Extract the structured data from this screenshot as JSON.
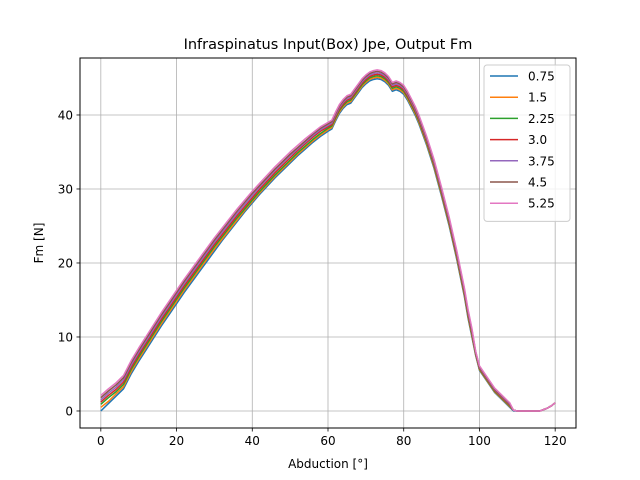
{
  "chart_data": {
    "type": "line",
    "title": "Infraspinatus Input(Box) Jpe, Output Fm",
    "xlabel": "Abduction [°]",
    "ylabel": "Fm [N]",
    "xlim": [
      -5.5,
      125.5
    ],
    "ylim": [
      -2.3,
      47.7
    ],
    "xticks": [
      0,
      20,
      40,
      60,
      80,
      100,
      120
    ],
    "yticks": [
      0,
      10,
      20,
      30,
      40
    ],
    "grid": true,
    "legend_position": "top-right",
    "x": [
      0,
      2,
      4,
      6,
      8,
      10,
      12,
      14,
      16,
      18,
      20,
      22,
      24,
      25,
      26,
      27,
      28,
      30,
      32,
      34,
      36,
      38,
      40,
      42,
      44,
      46,
      48,
      50,
      52,
      54,
      56,
      58,
      60,
      61,
      62,
      63,
      64,
      65,
      66,
      67,
      68,
      69,
      70,
      71,
      72,
      73,
      74,
      75,
      76,
      77,
      78,
      79,
      80,
      81,
      82,
      83,
      84,
      85,
      86,
      87,
      88,
      90,
      92,
      94,
      96,
      97,
      98,
      99,
      100,
      102,
      104,
      106,
      108,
      109,
      110,
      112,
      114,
      116,
      117,
      118,
      119,
      120
    ],
    "series": [
      {
        "name": "0.75",
        "color": "#1f77b4",
        "values": [
          0.0,
          1.0,
          2.0,
          3.0,
          5.0,
          6.7,
          8.3,
          9.9,
          11.5,
          13.0,
          14.5,
          16.0,
          17.4,
          18.1,
          18.8,
          19.5,
          20.2,
          21.6,
          23.0,
          24.3,
          25.6,
          26.9,
          28.1,
          29.3,
          30.4,
          31.5,
          32.5,
          33.5,
          34.5,
          35.4,
          36.3,
          37.1,
          37.8,
          38.1,
          39.2,
          40.2,
          40.9,
          41.4,
          41.6,
          42.3,
          43.0,
          43.7,
          44.2,
          44.6,
          44.8,
          44.9,
          44.8,
          44.5,
          44.0,
          43.2,
          43.4,
          43.2,
          42.8,
          42.0,
          41.0,
          40.0,
          38.8,
          37.4,
          36.0,
          34.4,
          32.8,
          29.0,
          25.0,
          20.5,
          15.5,
          12.5,
          10.0,
          7.5,
          5.5,
          4.0,
          2.5,
          1.5,
          0.5,
          0.0,
          0.0,
          0.0,
          0.0,
          0.0,
          0.2,
          0.4,
          0.7,
          1.1
        ]
      },
      {
        "name": "1.5",
        "color": "#ff7f0e",
        "values": [
          0.5,
          1.3,
          2.3,
          3.3,
          5.3,
          7.0,
          8.6,
          10.2,
          11.8,
          13.3,
          14.8,
          16.3,
          17.7,
          18.4,
          19.1,
          19.8,
          20.5,
          21.9,
          23.2,
          24.5,
          25.8,
          27.1,
          28.3,
          29.5,
          30.6,
          31.7,
          32.7,
          33.7,
          34.7,
          35.6,
          36.5,
          37.3,
          38.0,
          38.3,
          39.4,
          40.4,
          41.1,
          41.6,
          41.8,
          42.5,
          43.2,
          43.9,
          44.4,
          44.8,
          45.0,
          45.1,
          45.0,
          44.7,
          44.2,
          43.4,
          43.6,
          43.4,
          43.0,
          42.2,
          41.2,
          40.2,
          39.0,
          37.6,
          36.2,
          34.6,
          33.0,
          29.2,
          25.2,
          20.7,
          15.7,
          12.7,
          10.2,
          7.6,
          5.6,
          4.1,
          2.6,
          1.6,
          0.6,
          0.1,
          0.0,
          0.0,
          0.0,
          0.0,
          0.2,
          0.4,
          0.7,
          1.1
        ]
      },
      {
        "name": "2.25",
        "color": "#2ca02c",
        "values": [
          0.9,
          1.8,
          2.6,
          3.6,
          5.6,
          7.3,
          8.9,
          10.5,
          12.1,
          13.6,
          15.1,
          16.6,
          18.0,
          18.7,
          19.4,
          20.1,
          20.8,
          22.2,
          23.5,
          24.8,
          26.1,
          27.3,
          28.5,
          29.7,
          30.8,
          31.9,
          32.9,
          33.9,
          34.9,
          35.8,
          36.7,
          37.5,
          38.2,
          38.5,
          39.6,
          40.6,
          41.3,
          41.8,
          42.0,
          42.7,
          43.4,
          44.1,
          44.6,
          45.0,
          45.2,
          45.3,
          45.2,
          44.9,
          44.4,
          43.6,
          43.8,
          43.6,
          43.2,
          42.4,
          41.4,
          40.4,
          39.2,
          37.8,
          36.4,
          34.8,
          33.2,
          29.4,
          25.4,
          20.9,
          15.9,
          12.9,
          10.4,
          7.7,
          5.7,
          4.2,
          2.7,
          1.7,
          0.7,
          0.1,
          0.0,
          0.0,
          0.0,
          0.0,
          0.2,
          0.4,
          0.7,
          1.1
        ]
      },
      {
        "name": "3.0",
        "color": "#d62728",
        "values": [
          1.2,
          2.1,
          2.9,
          3.9,
          5.9,
          7.6,
          9.2,
          10.8,
          12.4,
          13.9,
          15.4,
          16.9,
          18.3,
          19.0,
          19.7,
          20.4,
          21.1,
          22.5,
          23.8,
          25.1,
          26.4,
          27.6,
          28.8,
          30.0,
          31.1,
          32.2,
          33.2,
          34.2,
          35.2,
          36.1,
          37.0,
          37.8,
          38.4,
          38.7,
          39.8,
          40.8,
          41.5,
          42.0,
          42.2,
          42.9,
          43.6,
          44.3,
          44.8,
          45.2,
          45.4,
          45.5,
          45.4,
          45.1,
          44.6,
          43.8,
          44.0,
          43.8,
          43.4,
          42.6,
          41.6,
          40.6,
          39.4,
          38.0,
          36.6,
          35.0,
          33.4,
          29.6,
          25.6,
          21.1,
          16.1,
          13.1,
          10.6,
          7.8,
          5.8,
          4.3,
          2.8,
          1.8,
          0.8,
          0.1,
          0.0,
          0.0,
          0.0,
          0.0,
          0.2,
          0.4,
          0.7,
          1.1
        ]
      },
      {
        "name": "3.75",
        "color": "#9467bd",
        "values": [
          1.5,
          2.4,
          3.2,
          4.2,
          6.2,
          7.9,
          9.5,
          11.1,
          12.7,
          14.2,
          15.7,
          17.2,
          18.6,
          19.3,
          20.0,
          20.7,
          21.4,
          22.8,
          24.1,
          25.4,
          26.7,
          27.9,
          29.1,
          30.3,
          31.4,
          32.5,
          33.5,
          34.5,
          35.4,
          36.3,
          37.2,
          38.0,
          38.6,
          38.9,
          40.0,
          41.0,
          41.7,
          42.2,
          42.4,
          43.1,
          43.8,
          44.5,
          45.0,
          45.4,
          45.6,
          45.7,
          45.6,
          45.3,
          44.8,
          44.0,
          44.2,
          44.0,
          43.6,
          42.8,
          41.8,
          40.8,
          39.6,
          38.2,
          36.8,
          35.2,
          33.6,
          29.8,
          25.8,
          21.3,
          16.3,
          13.3,
          10.8,
          7.9,
          5.9,
          4.4,
          2.9,
          1.9,
          0.9,
          0.1,
          0.0,
          0.0,
          0.0,
          0.0,
          0.2,
          0.4,
          0.7,
          1.1
        ]
      },
      {
        "name": "4.5",
        "color": "#8c564b",
        "values": [
          1.8,
          2.7,
          3.5,
          4.5,
          6.5,
          8.2,
          9.8,
          11.4,
          13.0,
          14.5,
          16.0,
          17.5,
          18.9,
          19.6,
          20.3,
          21.0,
          21.7,
          23.1,
          24.4,
          25.7,
          27.0,
          28.2,
          29.4,
          30.5,
          31.6,
          32.7,
          33.7,
          34.7,
          35.6,
          36.5,
          37.4,
          38.2,
          38.8,
          39.1,
          40.2,
          41.2,
          41.9,
          42.4,
          42.6,
          43.3,
          44.0,
          44.7,
          45.2,
          45.6,
          45.8,
          45.9,
          45.8,
          45.5,
          45.0,
          44.2,
          44.4,
          44.2,
          43.8,
          43.0,
          42.0,
          41.0,
          39.8,
          38.4,
          37.0,
          35.4,
          33.8,
          30.0,
          26.0,
          21.5,
          16.5,
          13.5,
          11.0,
          8.0,
          6.0,
          4.5,
          3.0,
          2.0,
          1.0,
          0.1,
          0.0,
          0.0,
          0.0,
          0.0,
          0.2,
          0.4,
          0.7,
          1.1
        ]
      },
      {
        "name": "5.25",
        "color": "#e377c2",
        "values": [
          2.1,
          3.0,
          3.8,
          4.8,
          6.8,
          8.5,
          10.1,
          11.7,
          13.3,
          14.8,
          16.3,
          17.8,
          19.2,
          19.9,
          20.6,
          21.3,
          22.0,
          23.4,
          24.7,
          26.0,
          27.3,
          28.5,
          29.7,
          30.8,
          31.9,
          33.0,
          34.0,
          35.0,
          35.9,
          36.8,
          37.6,
          38.4,
          39.0,
          39.3,
          40.4,
          41.4,
          42.1,
          42.6,
          42.8,
          43.5,
          44.2,
          44.9,
          45.4,
          45.8,
          46.0,
          46.1,
          46.0,
          45.7,
          45.2,
          44.4,
          44.6,
          44.4,
          44.0,
          43.2,
          42.2,
          41.2,
          40.0,
          38.6,
          37.2,
          35.6,
          34.0,
          30.2,
          26.2,
          21.7,
          16.7,
          13.7,
          11.2,
          8.1,
          6.1,
          4.6,
          3.1,
          2.1,
          1.1,
          0.1,
          0.0,
          0.0,
          0.0,
          0.0,
          0.2,
          0.4,
          0.7,
          1.1
        ]
      }
    ]
  }
}
